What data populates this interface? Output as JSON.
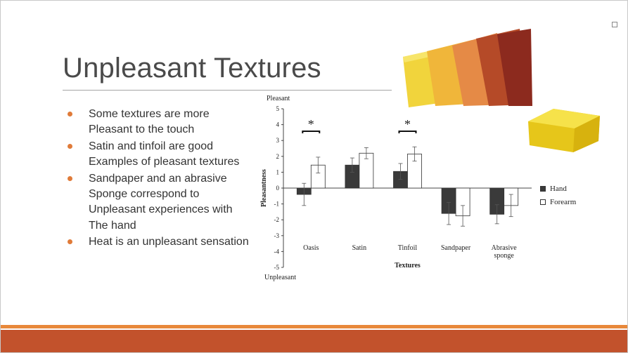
{
  "slide": {
    "title": "Unpleasant Textures",
    "bullets": [
      {
        "lines": [
          "Some textures are more",
          "Pleasant to the touch"
        ]
      },
      {
        "lines": [
          "Satin and tinfoil are good",
          "Examples of pleasant textures"
        ]
      },
      {
        "lines": [
          "Sandpaper and an abrasive",
          "Sponge correspond to",
          "Unpleasant experiences with",
          "The hand"
        ]
      },
      {
        "lines": [
          "Heat is an unpleasant sensation"
        ]
      }
    ],
    "images": {
      "sandpaper": "sandpaper-sheets-photo",
      "sponge": "yellow-sponge-photo"
    },
    "colors": {
      "accent_bullet": "#e07b39",
      "footer_thin": "#e8883a",
      "footer_thick": "#c2522c",
      "hand_bar": "#3a3a3a",
      "forearm_bar": "#ffffff"
    }
  },
  "chart_data": {
    "type": "bar",
    "top_label": "Pleasant",
    "bottom_label": "Unpleasant",
    "xlabel": "Textures",
    "ylabel": "Pleasantness",
    "ylim": [
      -5,
      5
    ],
    "yticks": [
      5,
      4,
      3,
      2,
      1,
      0,
      -1,
      -2,
      -3,
      -4,
      -5
    ],
    "categories": [
      [
        "Oasis"
      ],
      [
        "Satin"
      ],
      [
        "Tinfoil"
      ],
      [
        "Sandpaper"
      ],
      [
        "Abrasive",
        "sponge"
      ]
    ],
    "series": [
      {
        "name": "Hand",
        "values": [
          -0.4,
          1.45,
          1.05,
          -1.6,
          -1.65
        ],
        "errors": [
          0.7,
          0.45,
          0.5,
          0.7,
          0.6
        ]
      },
      {
        "name": "Forearm",
        "values": [
          1.45,
          2.2,
          2.15,
          -1.75,
          -1.1
        ],
        "errors": [
          0.5,
          0.35,
          0.45,
          0.65,
          0.7
        ]
      }
    ],
    "significance": [
      {
        "category_index": 0,
        "label": "*"
      },
      {
        "category_index": 2,
        "label": "*"
      }
    ],
    "legend_position": "right",
    "grid": false
  }
}
